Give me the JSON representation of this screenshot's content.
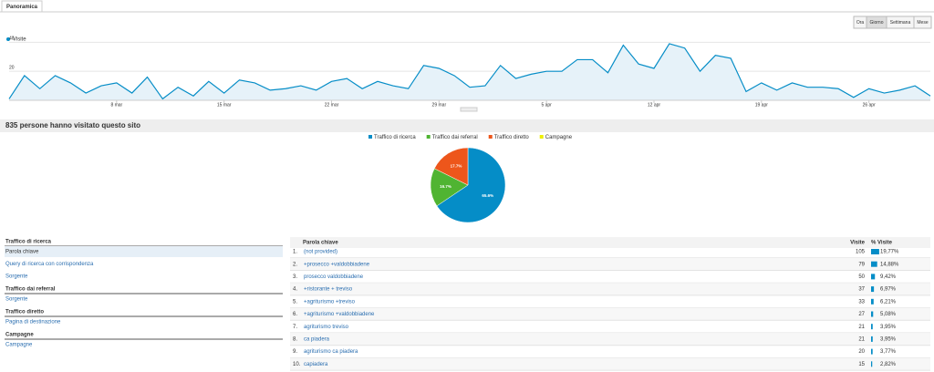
{
  "tabs": [
    "Panoramica"
  ],
  "period_buttons": [
    "Ora",
    "Giorno",
    "Settimana",
    "Mese"
  ],
  "chart_data": [
    {
      "type": "area",
      "ylim": [
        0,
        44
      ],
      "yticks": [
        20,
        40
      ],
      "grid": true,
      "categories": [
        null,
        null,
        null,
        null,
        null,
        null,
        null,
        "8 mar",
        null,
        null,
        null,
        null,
        null,
        null,
        "15 mar",
        null,
        null,
        null,
        null,
        null,
        null,
        "22 mar",
        null,
        null,
        null,
        null,
        null,
        null,
        "29 mar",
        null,
        null,
        null,
        null,
        null,
        null,
        "5 apr",
        null,
        null,
        null,
        null,
        null,
        null,
        "12 apr",
        null,
        null,
        null,
        null,
        null,
        null,
        "19 apr",
        null,
        null,
        null,
        null,
        null,
        null,
        "26 apr",
        null,
        null,
        null,
        null
      ],
      "series": [
        {
          "name": "Visite",
          "color": "#058dc7",
          "values": [
            1,
            17,
            8,
            17,
            12,
            5,
            10,
            12,
            5,
            16,
            1,
            9,
            3,
            13,
            5,
            14,
            12,
            7,
            8,
            10,
            7,
            13,
            15,
            8,
            13,
            10,
            8,
            24,
            22,
            17,
            9,
            10,
            24,
            15,
            18,
            20,
            20,
            28,
            28,
            19,
            38,
            25,
            22,
            39,
            36,
            20,
            31,
            29,
            6,
            12,
            7,
            12,
            9,
            9,
            8,
            2,
            8,
            5,
            7,
            10,
            3
          ]
        }
      ]
    },
    {
      "type": "pie",
      "categories": [
        "Traffico di ricerca",
        "Traffico dai referral",
        "Traffico diretto",
        "Campagne"
      ],
      "colors": [
        "#058dc7",
        "#50b432",
        "#ed561b",
        "#edef00"
      ],
      "values": [
        65.6,
        16.7,
        17.7,
        0
      ],
      "value_labels": [
        "65.6%",
        "16.7%",
        "17.7%",
        null
      ]
    }
  ],
  "summary": "835 persone hanno visitato questo sito",
  "nav": [
    {
      "title": "Traffico di ricerca",
      "items": [
        "Parola chiave",
        "Query di ricerca con corrispondenza",
        "Sorgente"
      ]
    },
    {
      "title": "Traffico dai referral",
      "items": [
        "Sorgente"
      ]
    },
    {
      "title": "Traffico diretto",
      "items": [
        "Pagina di destinazione"
      ]
    },
    {
      "title": "Campagne",
      "items": [
        "Campagne"
      ]
    }
  ],
  "table": {
    "header": [
      "Parola chiave",
      "Visite",
      "% Visite"
    ],
    "rows": [
      {
        "rank": "1.",
        "keyword": "(not provided)",
        "visits": 105,
        "pct": 19.77,
        "pct_label": "19,77%"
      },
      {
        "rank": "2.",
        "keyword": "+prosecco +valdobbiadene",
        "visits": 79,
        "pct": 14.88,
        "pct_label": "14,88%"
      },
      {
        "rank": "3.",
        "keyword": "prosecco valdobbiadene",
        "visits": 50,
        "pct": 9.42,
        "pct_label": "9,42%"
      },
      {
        "rank": "4.",
        "keyword": "+ristorante + treviso",
        "visits": 37,
        "pct": 6.97,
        "pct_label": "6,97%"
      },
      {
        "rank": "5.",
        "keyword": "+agriturismo +treviso",
        "visits": 33,
        "pct": 6.21,
        "pct_label": "6,21%"
      },
      {
        "rank": "6.",
        "keyword": "+agriturismo +valdobbiadene",
        "visits": 27,
        "pct": 5.08,
        "pct_label": "5,08%"
      },
      {
        "rank": "7.",
        "keyword": "agriturismo treviso",
        "visits": 21,
        "pct": 3.95,
        "pct_label": "3,95%"
      },
      {
        "rank": "8.",
        "keyword": "ca piadera",
        "visits": 21,
        "pct": 3.95,
        "pct_label": "3,95%"
      },
      {
        "rank": "9.",
        "keyword": "agriturismo ca piadera",
        "visits": 20,
        "pct": 3.77,
        "pct_label": "3,77%"
      },
      {
        "rank": "10.",
        "keyword": "capiadera",
        "visits": 15,
        "pct": 2.82,
        "pct_label": "2,82%"
      }
    ]
  }
}
